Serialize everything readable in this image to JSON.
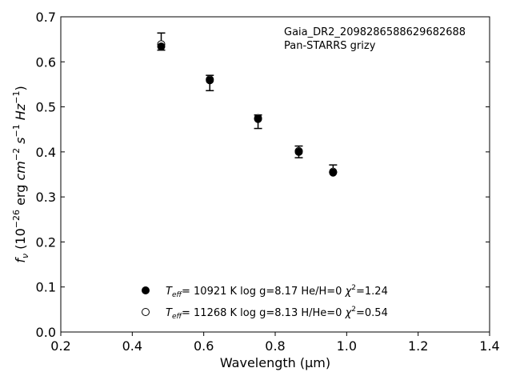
{
  "chart_data": {
    "type": "scatter",
    "xlabel": "Wavelength (μm)",
    "ylabel_parts": {
      "f": "f",
      "nu": "ν",
      "pre": " (10",
      "exp26": "−26",
      "erg": " erg ",
      "cm": "cm",
      "exp2": "−2",
      "s": " s",
      "exp1a": "−1",
      "hz": " Hz",
      "exp1b": "−1",
      "close": ")"
    },
    "xlim": [
      0.2,
      1.4
    ],
    "ylim": [
      0.0,
      0.7
    ],
    "xticks": [
      0.2,
      0.4,
      0.6,
      0.8,
      1.0,
      1.2,
      1.4
    ],
    "yticks": [
      0.0,
      0.1,
      0.2,
      0.3,
      0.4,
      0.5,
      0.6,
      0.7
    ],
    "xtick_labels": [
      "0.2",
      "0.4",
      "0.6",
      "0.8",
      "1.0",
      "1.2",
      "1.4"
    ],
    "ytick_labels": [
      "0.0",
      "0.1",
      "0.2",
      "0.3",
      "0.4",
      "0.5",
      "0.6",
      "0.7"
    ],
    "grid": false,
    "annotation": {
      "line1": "Gaia_DR2_2098286588629682688",
      "line2": "Pan-STARRS grizy"
    },
    "observed": {
      "x": [
        0.481,
        0.617,
        0.752,
        0.866,
        0.962
      ],
      "y": [
        0.645,
        0.553,
        0.467,
        0.4,
        0.363
      ],
      "yerr": [
        0.019,
        0.017,
        0.015,
        0.013,
        0.008
      ]
    },
    "series": [
      {
        "marker": "filled-circle",
        "x": [
          0.481,
          0.617,
          0.752,
          0.866,
          0.962
        ],
        "y": [
          0.634,
          0.559,
          0.473,
          0.4,
          0.354
        ],
        "legend": {
          "t": "T",
          "eff": "eff",
          "text1": "= 10921 K  log g=8.17  He/H=0  ",
          "chi": "χ",
          "sq": "2",
          "text2": "=1.24"
        }
      },
      {
        "marker": "open-circle",
        "x": [
          0.481,
          0.617,
          0.752,
          0.866,
          0.962
        ],
        "y": [
          0.639,
          0.561,
          0.475,
          0.402,
          0.356
        ],
        "legend": {
          "t": "T",
          "eff": "eff",
          "text1": "= 11268 K  log g=8.13  H/He=0  ",
          "chi": "χ",
          "sq": "2",
          "text2": "=0.54"
        }
      }
    ],
    "legend_position": "lower-center"
  }
}
